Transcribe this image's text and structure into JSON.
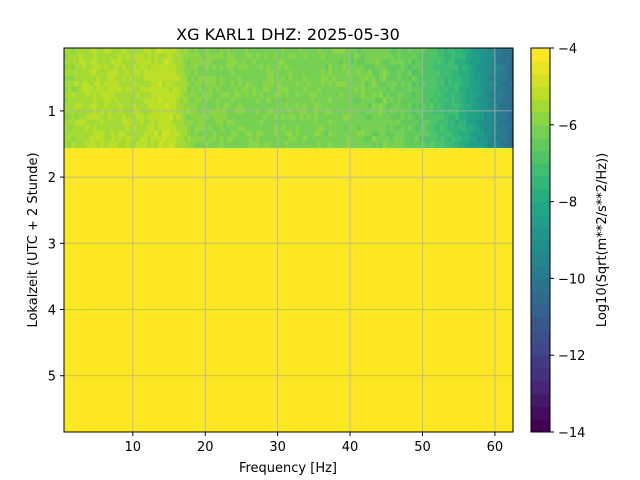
{
  "chart_data": {
    "type": "heatmap",
    "title": "XG KARL1  DHZ: 2025-05-30",
    "xlabel": "Frequency [Hz]",
    "ylabel": "Lokalzeit (UTC + 2 Stunde)",
    "xlim": [
      0.5,
      62.5
    ],
    "ylim": [
      5.85,
      0.05
    ],
    "xticks": [
      "10",
      "20",
      "30",
      "40",
      "50",
      "60"
    ],
    "xtick_values": [
      10,
      20,
      30,
      40,
      50,
      60
    ],
    "yticks": [
      "1",
      "2",
      "3",
      "4",
      "5"
    ],
    "ytick_values": [
      1,
      2,
      3,
      4,
      5
    ],
    "grid": true,
    "colorbar": {
      "label": "Log10(Sqrt(m**2/s**2/Hz))",
      "range": [
        -14,
        -4
      ],
      "levels": 30,
      "ticks": [
        "−4",
        "−6",
        "−8",
        "−10",
        "−12",
        "−14"
      ],
      "tick_values": [
        -4,
        -6,
        -8,
        -10,
        -12,
        -14
      ],
      "colormap": "viridis"
    },
    "data_segment": {
      "time_range": [
        0.05,
        1.55
      ],
      "note_value_after": -4,
      "frequency_profile": [
        {
          "f": 0.5,
          "v": -5.6
        },
        {
          "f": 5,
          "v": -5.3
        },
        {
          "f": 10,
          "v": -5.4
        },
        {
          "f": 15,
          "v": -5.1
        },
        {
          "f": 18,
          "v": -5.9
        },
        {
          "f": 25,
          "v": -6.1
        },
        {
          "f": 35,
          "v": -6.1
        },
        {
          "f": 45,
          "v": -6.2
        },
        {
          "f": 50,
          "v": -6.6
        },
        {
          "f": 55,
          "v": -7.5
        },
        {
          "f": 58,
          "v": -8.6
        },
        {
          "f": 60,
          "v": -9.6
        },
        {
          "f": 62.5,
          "v": -10.4
        }
      ],
      "filled_value_below": -4
    }
  }
}
